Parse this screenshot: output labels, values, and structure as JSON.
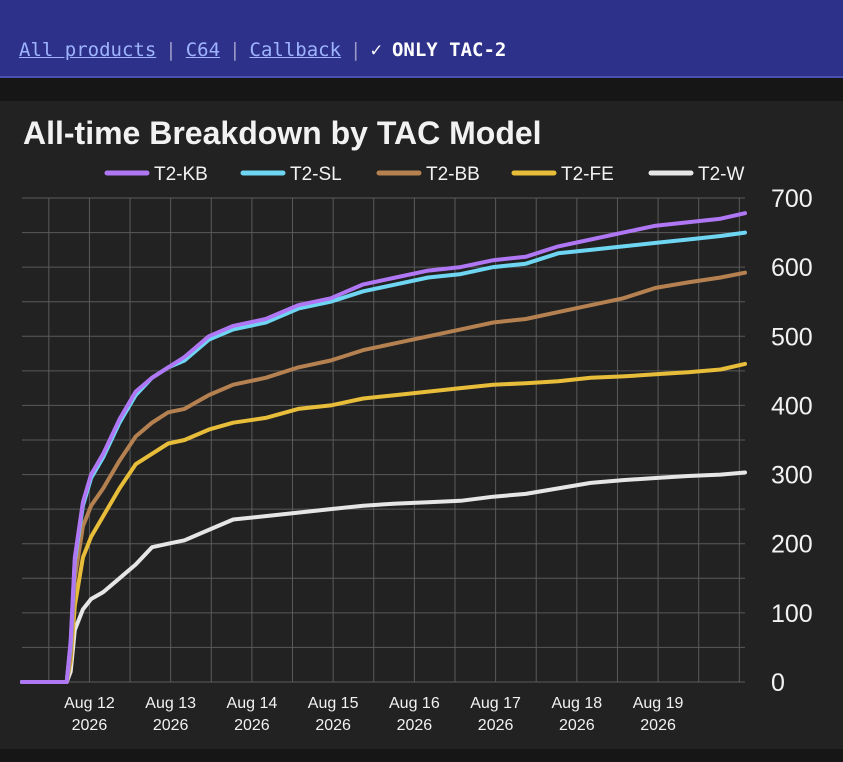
{
  "nav": {
    "links": [
      "All products",
      "C64",
      "Callback"
    ],
    "separator": "|",
    "current_check": "✓",
    "current_label": "ONLY TAC-2"
  },
  "colors": {
    "header_bg": "#2e318a",
    "link": "#9fb4ff",
    "panel_bg": "#222222",
    "grid": "#5a5a5a"
  },
  "chart_data": {
    "type": "line",
    "title": "All-time Breakdown by TAC Model",
    "xlabel": "",
    "ylabel": "",
    "ylim": [
      0,
      700
    ],
    "y_ticks": [
      0,
      100,
      200,
      300,
      400,
      500,
      600,
      700
    ],
    "y_axis_side": "right",
    "grid": true,
    "legend_position": "top",
    "x_tick_labels": [
      [
        "Aug 12",
        "2026"
      ],
      [
        "Aug 13",
        "2026"
      ],
      [
        "Aug 14",
        "2026"
      ],
      [
        "Aug 15",
        "2026"
      ],
      [
        "Aug 16",
        "2026"
      ],
      [
        "Aug 17",
        "2026"
      ],
      [
        "Aug 18",
        "2026"
      ],
      [
        "Aug 19",
        "2026"
      ]
    ],
    "x_tick_positions": [
      11.83,
      12.83,
      13.83,
      14.83,
      15.83,
      16.83,
      17.83,
      18.83
    ],
    "x_units": "day of August 2026",
    "xlim": [
      11.0,
      19.9
    ],
    "x": [
      11.0,
      11.2,
      11.4,
      11.55,
      11.6,
      11.65,
      11.75,
      11.85,
      12.0,
      12.2,
      12.4,
      12.6,
      12.8,
      13.0,
      13.3,
      13.6,
      14.0,
      14.4,
      14.8,
      15.2,
      15.6,
      16.0,
      16.4,
      16.8,
      17.2,
      17.6,
      18.0,
      18.4,
      18.8,
      19.2,
      19.6,
      19.9
    ],
    "series": [
      {
        "name": "T2-KB",
        "color": "#b077f5",
        "values": [
          0,
          0,
          0,
          0,
          60,
          180,
          260,
          300,
          330,
          380,
          420,
          440,
          455,
          470,
          500,
          515,
          525,
          545,
          555,
          575,
          585,
          595,
          600,
          610,
          615,
          630,
          640,
          650,
          660,
          665,
          670,
          678
        ]
      },
      {
        "name": "T2-SL",
        "color": "#6ed6f2",
        "values": [
          0,
          0,
          0,
          0,
          55,
          175,
          255,
          295,
          325,
          375,
          415,
          440,
          455,
          465,
          495,
          510,
          520,
          540,
          550,
          565,
          575,
          585,
          590,
          600,
          605,
          620,
          625,
          630,
          635,
          640,
          645,
          650
        ]
      },
      {
        "name": "T2-BB",
        "color": "#b58150",
        "values": [
          0,
          0,
          0,
          0,
          40,
          150,
          225,
          255,
          280,
          320,
          355,
          375,
          390,
          395,
          415,
          430,
          440,
          455,
          465,
          480,
          490,
          500,
          510,
          520,
          525,
          535,
          545,
          555,
          570,
          578,
          585,
          592
        ]
      },
      {
        "name": "T2-FE",
        "color": "#e8bd3a",
        "values": [
          0,
          0,
          0,
          0,
          30,
          110,
          180,
          210,
          240,
          280,
          315,
          330,
          345,
          350,
          365,
          375,
          382,
          395,
          400,
          410,
          415,
          420,
          425,
          430,
          432,
          435,
          440,
          442,
          445,
          448,
          452,
          460
        ]
      },
      {
        "name": "T2-W",
        "color": "#e6e6e6",
        "values": [
          0,
          0,
          0,
          0,
          15,
          75,
          105,
          120,
          130,
          150,
          170,
          195,
          200,
          205,
          220,
          235,
          240,
          245,
          250,
          255,
          258,
          260,
          262,
          268,
          272,
          280,
          288,
          292,
          295,
          298,
          300,
          303
        ]
      }
    ]
  }
}
